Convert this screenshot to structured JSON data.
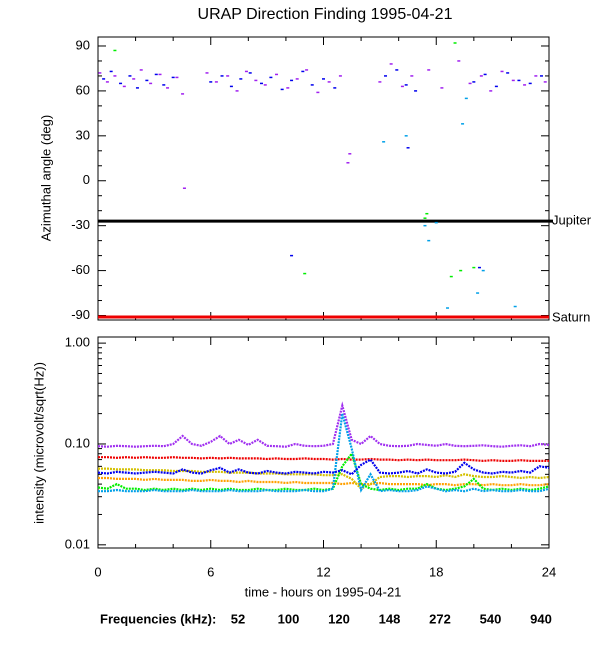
{
  "chart_data": [
    {
      "type": "scatter",
      "title": "URAP Direction Finding  1995-04-21",
      "ylabel": "Azimuthal angle (deg)",
      "xlim": [
        0,
        24
      ],
      "ylim": [
        -93,
        96
      ],
      "yticks": [
        -90,
        -60,
        -30,
        0,
        30,
        60,
        90
      ],
      "yminorticks": [
        -80,
        -70,
        -50,
        -40,
        -20,
        -10,
        10,
        20,
        40,
        50,
        70,
        80
      ],
      "annotations": [
        {
          "text": "Jupiter",
          "value": -27,
          "color": "#000000"
        },
        {
          "text": "Saturn",
          "value": -91,
          "color": "#ee0000"
        }
      ],
      "series": [
        {
          "color": "#a020f0",
          "x": [
            0.1,
            0.5,
            0.9,
            1.4,
            1.9,
            2.3,
            2.8,
            3.3,
            3.7,
            4.2,
            4.5,
            5.8,
            6.3,
            6.9,
            7.4,
            7.9,
            8.4,
            8.9,
            9.5,
            10.1,
            10.6,
            11.1,
            11.7,
            12.3,
            12.9,
            13.4,
            13.3,
            15.0,
            15.6,
            16.2,
            16.7,
            17.6,
            18.3,
            19.2,
            19.8,
            20.4,
            20.9,
            21.5,
            22.1,
            22.7,
            23.3,
            23.8,
            4.6
          ],
          "values": [
            72,
            66,
            70,
            63,
            68,
            74,
            65,
            71,
            62,
            69,
            58,
            72,
            66,
            70,
            60,
            73,
            67,
            64,
            71,
            62,
            68,
            74,
            59,
            66,
            70,
            18,
            12,
            66,
            78,
            63,
            70,
            74,
            62,
            80,
            65,
            70,
            60,
            73,
            67,
            64,
            70,
            66,
            -5
          ]
        },
        {
          "color": "#0000ee",
          "x": [
            0.3,
            0.7,
            1.2,
            1.7,
            2.1,
            2.6,
            3.1,
            3.5,
            4.0,
            6.0,
            6.6,
            7.1,
            7.6,
            8.1,
            8.7,
            9.2,
            9.8,
            10.3,
            10.9,
            11.4,
            12.0,
            12.6,
            15.3,
            15.9,
            16.4,
            16.9,
            20.0,
            20.6,
            21.2,
            21.8,
            22.4,
            23.0,
            23.6,
            16.5,
            10.3,
            20.3
          ],
          "values": [
            68,
            73,
            65,
            70,
            62,
            67,
            71,
            64,
            69,
            66,
            70,
            63,
            68,
            72,
            65,
            69,
            61,
            67,
            73,
            64,
            68,
            62,
            70,
            74,
            64,
            60,
            66,
            71,
            63,
            72,
            67,
            65,
            70,
            22,
            -50,
            -58
          ]
        },
        {
          "color": "#00ee00",
          "x": [
            0.9,
            17.4,
            17.5,
            18.8,
            19.3,
            20.0,
            19.0,
            11.0
          ],
          "values": [
            87,
            -25,
            -22,
            -64,
            -60,
            -58,
            92,
            -62
          ]
        },
        {
          "color": "#00a0e8",
          "x": [
            15.2,
            16.4,
            17.4,
            17.6,
            18.0,
            18.6,
            19.4,
            20.2,
            20.5,
            22.2,
            19.6
          ],
          "values": [
            26,
            30,
            -30,
            -40,
            -28,
            -85,
            38,
            -75,
            -60,
            -84,
            55
          ]
        }
      ]
    },
    {
      "type": "line",
      "ylabel": "intensity (microvolt/sqrt(Hz))",
      "xlabel": "time - hours on 1995-04-21",
      "xlim": [
        0,
        24
      ],
      "xticks": [
        0,
        6,
        12,
        18,
        24
      ],
      "xminorticks": [
        2,
        4,
        8,
        10,
        14,
        16,
        20,
        22
      ],
      "ylim": [
        0.0093,
        1.15
      ],
      "log": true,
      "yticks": [
        {
          "value": 1,
          "label": "1.00"
        },
        {
          "value": 0.1,
          "label": "0.10"
        },
        0.01
      ],
      "yminorticks": [
        0.02,
        0.03,
        0.04,
        0.05,
        0.06,
        0.07,
        0.08,
        0.09,
        0.2,
        0.3,
        0.4,
        0.5,
        0.6,
        0.7,
        0.8,
        0.9
      ],
      "legend_title": "Frequencies (kHz):",
      "x": [
        0,
        0.5,
        1,
        1.5,
        2,
        2.5,
        3,
        3.5,
        4,
        4.5,
        5,
        5.5,
        6,
        6.5,
        7,
        7.5,
        8,
        8.5,
        9,
        9.5,
        10,
        10.5,
        11,
        11.5,
        12,
        12.5,
        13,
        13.5,
        14,
        14.5,
        15,
        15.5,
        16,
        16.5,
        17,
        17.5,
        18,
        18.5,
        19,
        19.5,
        20,
        20.5,
        21,
        21.5,
        22,
        22.5,
        23,
        23.5,
        24
      ],
      "series": [
        {
          "name": "52",
          "color": "#ee0000",
          "values": [
            0.074,
            0.074,
            0.073,
            0.074,
            0.073,
            0.074,
            0.073,
            0.073,
            0.074,
            0.073,
            0.073,
            0.072,
            0.073,
            0.072,
            0.073,
            0.072,
            0.072,
            0.072,
            0.071,
            0.072,
            0.071,
            0.071,
            0.072,
            0.071,
            0.071,
            0.07,
            0.071,
            0.07,
            0.07,
            0.071,
            0.07,
            0.07,
            0.069,
            0.07,
            0.069,
            0.07,
            0.069,
            0.069,
            0.069,
            0.07,
            0.069,
            0.068,
            0.069,
            0.068,
            0.068,
            0.069,
            0.068,
            0.068,
            0.068
          ]
        },
        {
          "name": "100",
          "color": "#ffa000",
          "values": [
            0.046,
            0.046,
            0.045,
            0.045,
            0.045,
            0.044,
            0.045,
            0.044,
            0.044,
            0.044,
            0.043,
            0.043,
            0.044,
            0.043,
            0.043,
            0.042,
            0.043,
            0.042,
            0.042,
            0.042,
            0.041,
            0.042,
            0.041,
            0.041,
            0.041,
            0.041,
            0.04,
            0.041,
            0.04,
            0.04,
            0.041,
            0.04,
            0.04,
            0.04,
            0.04,
            0.039,
            0.04,
            0.04,
            0.039,
            0.04,
            0.04,
            0.039,
            0.04,
            0.039,
            0.039,
            0.04,
            0.039,
            0.039,
            0.04
          ]
        },
        {
          "name": "120",
          "color": "#d4c000",
          "values": [
            0.057,
            0.057,
            0.056,
            0.056,
            0.056,
            0.055,
            0.055,
            0.055,
            0.054,
            0.054,
            0.054,
            0.053,
            0.053,
            0.053,
            0.052,
            0.052,
            0.052,
            0.051,
            0.051,
            0.051,
            0.05,
            0.05,
            0.05,
            0.05,
            0.049,
            0.049,
            0.05,
            0.045,
            0.036,
            0.04,
            0.047,
            0.048,
            0.048,
            0.047,
            0.048,
            0.048,
            0.047,
            0.049,
            0.047,
            0.05,
            0.048,
            0.047,
            0.047,
            0.048,
            0.047,
            0.046,
            0.047,
            0.046,
            0.047
          ]
        },
        {
          "name": "148",
          "color": "#00ee00",
          "values": [
            0.037,
            0.036,
            0.04,
            0.036,
            0.036,
            0.035,
            0.036,
            0.035,
            0.036,
            0.035,
            0.036,
            0.035,
            0.036,
            0.035,
            0.036,
            0.035,
            0.035,
            0.036,
            0.035,
            0.035,
            0.036,
            0.035,
            0.035,
            0.036,
            0.035,
            0.036,
            0.06,
            0.08,
            0.04,
            0.036,
            0.035,
            0.036,
            0.035,
            0.036,
            0.036,
            0.04,
            0.036,
            0.035,
            0.036,
            0.038,
            0.045,
            0.036,
            0.035,
            0.036,
            0.035,
            0.036,
            0.035,
            0.036,
            0.038
          ]
        },
        {
          "name": "272",
          "color": "#00a0e8",
          "values": [
            0.034,
            0.034,
            0.035,
            0.034,
            0.034,
            0.034,
            0.035,
            0.034,
            0.034,
            0.034,
            0.035,
            0.034,
            0.034,
            0.034,
            0.035,
            0.034,
            0.034,
            0.034,
            0.035,
            0.034,
            0.034,
            0.034,
            0.035,
            0.034,
            0.034,
            0.036,
            0.2,
            0.09,
            0.035,
            0.05,
            0.034,
            0.035,
            0.034,
            0.034,
            0.035,
            0.038,
            0.036,
            0.034,
            0.035,
            0.034,
            0.036,
            0.034,
            0.035,
            0.034,
            0.034,
            0.035,
            0.034,
            0.034,
            0.036
          ]
        },
        {
          "name": "540",
          "color": "#0000ee",
          "values": [
            0.052,
            0.051,
            0.053,
            0.052,
            0.051,
            0.052,
            0.053,
            0.052,
            0.051,
            0.056,
            0.052,
            0.051,
            0.055,
            0.058,
            0.052,
            0.056,
            0.052,
            0.051,
            0.054,
            0.052,
            0.051,
            0.053,
            0.052,
            0.051,
            0.053,
            0.052,
            0.055,
            0.05,
            0.062,
            0.07,
            0.052,
            0.051,
            0.052,
            0.054,
            0.051,
            0.056,
            0.052,
            0.051,
            0.053,
            0.065,
            0.056,
            0.052,
            0.051,
            0.053,
            0.052,
            0.054,
            0.052,
            0.06,
            0.058
          ]
        },
        {
          "name": "940",
          "color": "#a030f0",
          "values": [
            0.095,
            0.094,
            0.096,
            0.095,
            0.094,
            0.095,
            0.096,
            0.095,
            0.1,
            0.12,
            0.1,
            0.096,
            0.105,
            0.12,
            0.1,
            0.11,
            0.098,
            0.11,
            0.096,
            0.095,
            0.094,
            0.1,
            0.096,
            0.095,
            0.096,
            0.1,
            0.24,
            0.11,
            0.1,
            0.12,
            0.1,
            0.096,
            0.095,
            0.096,
            0.1,
            0.098,
            0.096,
            0.1,
            0.096,
            0.095,
            0.096,
            0.097,
            0.095,
            0.094,
            0.096,
            0.097,
            0.095,
            0.1,
            0.098
          ]
        }
      ]
    }
  ]
}
